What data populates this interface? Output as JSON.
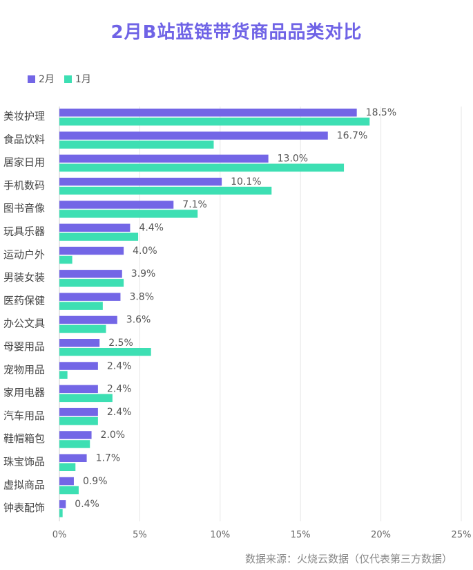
{
  "chart_data": {
    "type": "bar",
    "orientation": "horizontal",
    "title": "2月B站蓝链带货商品品类对比",
    "categories": [
      "美妆护理",
      "食品饮料",
      "居家日用",
      "手机数码",
      "图书音像",
      "玩具乐器",
      "运动户外",
      "男装女装",
      "医药保健",
      "办公文具",
      "母婴用品",
      "宠物用品",
      "家用电器",
      "汽车用品",
      "鞋帽箱包",
      "珠宝饰品",
      "虚拟商品",
      "钟表配饰"
    ],
    "series": [
      {
        "name": "2月",
        "color": "#7366e6",
        "values": [
          18.5,
          16.7,
          13.0,
          10.1,
          7.1,
          4.4,
          4.0,
          3.9,
          3.8,
          3.6,
          2.5,
          2.4,
          2.4,
          2.4,
          2.0,
          1.7,
          0.9,
          0.4
        ],
        "labels": [
          "18.5%",
          "16.7%",
          "13.0%",
          "10.1%",
          "7.1%",
          "4.4%",
          "4.0%",
          "3.9%",
          "3.8%",
          "3.6%",
          "2.5%",
          "2.4%",
          "2.4%",
          "2.4%",
          "2.0%",
          "1.7%",
          "0.9%",
          "0.4%"
        ]
      },
      {
        "name": "1月",
        "color": "#3ddfb3",
        "values": [
          19.3,
          9.6,
          17.7,
          13.2,
          8.6,
          4.9,
          0.8,
          4.0,
          2.7,
          2.9,
          5.7,
          0.5,
          3.3,
          2.4,
          1.9,
          1.0,
          1.2,
          0.2
        ]
      }
    ],
    "xlim": [
      0,
      25
    ],
    "xticks": [
      "0%",
      "5%",
      "10%",
      "15%",
      "20%",
      "25%"
    ],
    "grid": true,
    "legend": "top-left"
  },
  "source": "数据来源：火烧云数据（仅代表第三方数据）"
}
